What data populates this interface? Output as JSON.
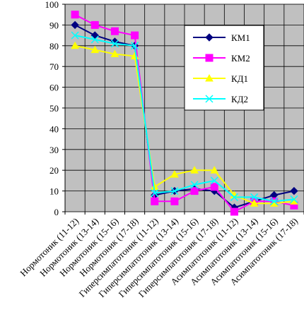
{
  "chart_data": {
    "type": "line",
    "ylim": [
      0,
      100
    ],
    "yticks": [
      "0",
      "10",
      "20",
      "30",
      "40",
      "50",
      "60",
      "70",
      "80",
      "90",
      "100"
    ],
    "grid": true,
    "legend_position": "top-right",
    "plot_background": "#c0c0c0",
    "categories": [
      "Нормотоник (11-12)",
      "Нормотоник (13-14)",
      "Нормотоник (15-16)",
      "Нормотоник (17-18)",
      "Гиперсимпатотоник (11-12)",
      "Гиперсимпатотоник (13-14)",
      "Гиперсимпатотоник (15-16)",
      "Гиперсимпатотоник (17-18)",
      "Асимпатотоник (11-12)",
      "Асимпатотоник (13-14)",
      "Асимпатотоник (15-16)",
      "Асимпатотоник (17-18)"
    ],
    "series": [
      {
        "name": "КМ1",
        "color": "#000080",
        "marker": "diamond",
        "values": [
          90,
          85,
          82,
          80,
          8,
          10,
          11,
          10,
          2,
          5,
          8,
          10
        ]
      },
      {
        "name": "КМ2",
        "color": "#ff00ff",
        "marker": "square",
        "values": [
          95,
          90,
          87,
          85,
          5,
          5,
          10,
          12,
          0,
          5,
          5,
          3
        ]
      },
      {
        "name": "КД1",
        "color": "#ffff00",
        "marker": "triangle",
        "values": [
          80,
          78,
          76,
          75,
          12,
          18,
          20,
          20,
          8,
          4,
          4,
          5
        ]
      },
      {
        "name": "КД2",
        "color": "#00ffff",
        "marker": "x",
        "values": [
          85,
          83,
          81,
          80,
          9,
          10,
          13,
          15,
          7,
          7,
          5,
          6
        ]
      }
    ]
  }
}
